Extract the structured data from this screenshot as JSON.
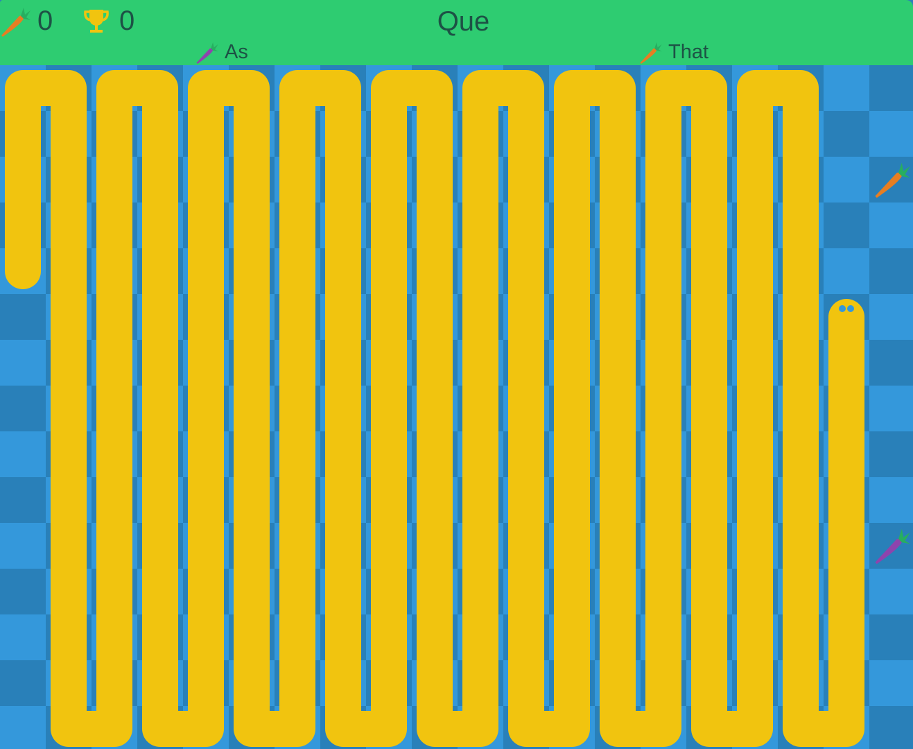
{
  "header": {
    "carrots_icon": "carrot-icon",
    "carrots_count": "0",
    "trophy_icon": "trophy-icon",
    "best_score": "0",
    "question": "Que",
    "options": [
      {
        "label": "As",
        "carrot_color": "purple"
      },
      {
        "label": "That",
        "carrot_color": "orange"
      }
    ]
  },
  "colors": {
    "header_bg": "#2ecc71",
    "text": "#1d5245",
    "tile_light": "#3498db",
    "tile_dark": "#2980b9",
    "snake": "#f1c40f",
    "carrot_orange": "#e67e22",
    "carrot_purple": "#8e44ad",
    "leaf": "#27ae60"
  },
  "board": {
    "cell_size": 66,
    "cols": 20,
    "rows": 15,
    "carrots": [
      {
        "col": 19,
        "row": 2,
        "color": "orange"
      },
      {
        "col": 19,
        "row": 10,
        "color": "purple"
      }
    ],
    "snake": {
      "head": {
        "col": 18,
        "row": 5
      },
      "tail": {
        "col": 0,
        "row": 4
      },
      "columns": 19
    }
  }
}
